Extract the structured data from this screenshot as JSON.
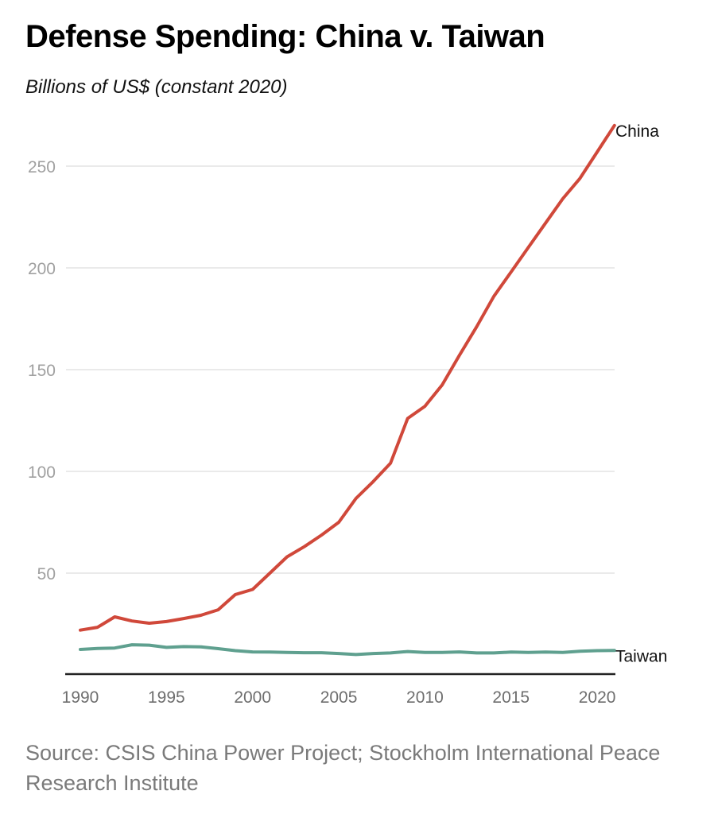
{
  "chart_data": {
    "type": "line",
    "title": "Defense Spending: China v. Taiwan",
    "subtitle": "Billions of US$ (constant 2020)",
    "xlabel": "",
    "ylabel": "",
    "x": [
      1990,
      1991,
      1992,
      1993,
      1994,
      1995,
      1996,
      1997,
      1998,
      1999,
      2000,
      2001,
      2002,
      2003,
      2004,
      2005,
      2006,
      2007,
      2008,
      2009,
      2010,
      2011,
      2012,
      2013,
      2014,
      2015,
      2016,
      2017,
      2018,
      2019,
      2020,
      2021
    ],
    "series": [
      {
        "name": "China",
        "color": "#d0483a",
        "values": [
          22.0,
          23.4,
          28.5,
          26.5,
          25.4,
          26.2,
          27.7,
          29.3,
          32.0,
          39.5,
          42.0,
          50.0,
          58.0,
          63.0,
          68.7,
          75.0,
          86.7,
          95.0,
          104.0,
          126.0,
          132.0,
          142.5,
          157.0,
          171.0,
          186.0,
          198.0,
          210.0,
          222.0,
          234.0,
          244.0,
          257.0,
          270.0
        ]
      },
      {
        "name": "Taiwan",
        "color": "#5fa08f",
        "values": [
          12.5,
          13.0,
          13.2,
          14.8,
          14.6,
          13.5,
          13.9,
          13.8,
          12.9,
          11.9,
          11.3,
          11.2,
          11.0,
          10.9,
          10.9,
          10.5,
          10.0,
          10.5,
          10.8,
          11.5,
          11.0,
          11.0,
          11.3,
          10.8,
          10.8,
          11.2,
          11.0,
          11.2,
          11.0,
          11.6,
          11.9,
          12.0
        ]
      }
    ],
    "ylim": [
      0,
      270
    ],
    "yticks": [
      50,
      100,
      150,
      200,
      250
    ],
    "xticks": [
      1990,
      1995,
      2000,
      2005,
      2010,
      2015,
      2020
    ],
    "xlim": [
      1989.1,
      2022
    ],
    "grid": true,
    "legend": "direct-labels-right",
    "source": "Source: CSIS China Power Project; Stockholm International Peace Research Institute"
  }
}
